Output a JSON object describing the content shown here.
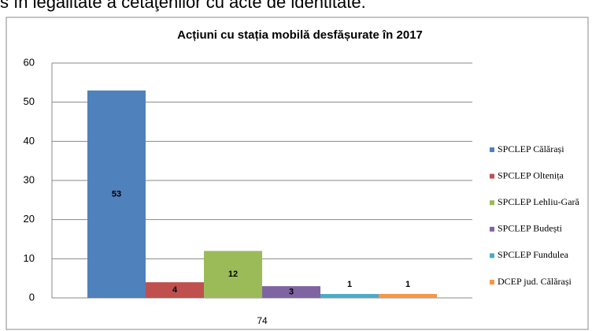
{
  "header_text": "s în legalitate a cetăţenilor cu acte de identitate.",
  "chart_data": {
    "type": "bar",
    "title": "Acțiuni cu stația mobilă desfășurate în 2017",
    "categories": [
      "74"
    ],
    "series": [
      {
        "name": "SPCLEP Călărași",
        "color": "#4f81bd",
        "values": [
          53
        ]
      },
      {
        "name": "SPCLEP Oltenița",
        "color": "#c0504d",
        "values": [
          4
        ]
      },
      {
        "name": "SPCLEP Lehliu-Gară",
        "color": "#9bbb59",
        "values": [
          12
        ]
      },
      {
        "name": "SPCLEP Budești",
        "color": "#8064a2",
        "values": [
          3
        ]
      },
      {
        "name": "SPCLEP Fundulea",
        "color": "#4bacc6",
        "values": [
          1
        ]
      },
      {
        "name": "DCEP jud. Călărași",
        "color": "#f79646",
        "values": [
          1
        ]
      }
    ],
    "ylim": [
      0,
      60
    ],
    "yticks": [
      0,
      10,
      20,
      30,
      40,
      50,
      60
    ],
    "grid": true,
    "legend": "right"
  }
}
